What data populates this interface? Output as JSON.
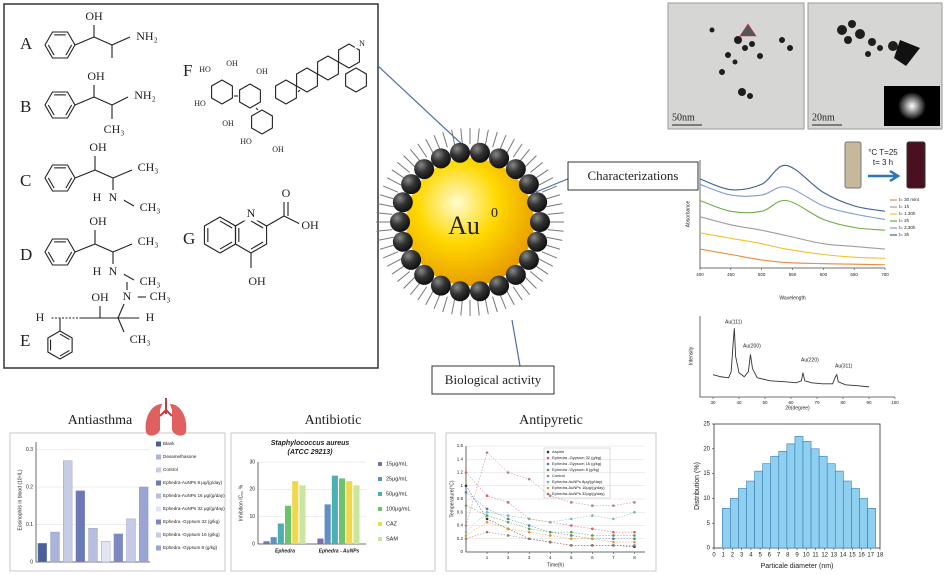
{
  "structures": [
    {
      "label": "A",
      "atoms": [
        "OH",
        "NH₂"
      ]
    },
    {
      "label": "B",
      "atoms": [
        "OH",
        "NH₂",
        "CH₃"
      ]
    },
    {
      "label": "C",
      "atoms": [
        "OH",
        "CH₃",
        "H",
        "N",
        "CH₃"
      ]
    },
    {
      "label": "D",
      "atoms": [
        "OH",
        "CH₃",
        "H",
        "N",
        "CH₃"
      ]
    },
    {
      "label": "E",
      "atoms": [
        "OH",
        "N",
        "CH₃",
        "H",
        "H",
        "CH₃"
      ]
    },
    {
      "label": "F",
      "atoms": [
        "HO",
        "OH",
        "HO",
        "OH",
        "OH",
        "HO",
        "OH",
        "N"
      ]
    },
    {
      "label": "G",
      "atoms": [
        "N",
        "O",
        "OH",
        "OH"
      ]
    }
  ],
  "center": {
    "element": "Au",
    "superscript": "0"
  },
  "callouts": {
    "characterizations": "Characterizations",
    "biological_activity": "Biological activity"
  },
  "tem": {
    "scale_bars": [
      "50nm",
      "20nm"
    ]
  },
  "uv_vis": {
    "inset": [
      "°C T=25",
      "t= 3 h"
    ],
    "x_label": "Wavelength",
    "y_label": "Absorbance",
    "x": [
      400,
      450,
      500,
      540,
      600,
      650,
      700
    ],
    "xlim": [
      400,
      700
    ],
    "xticks": [
      400,
      450,
      500,
      550,
      600,
      650,
      700
    ],
    "ylim": [
      0,
      2
    ],
    "series": [
      {
        "name": "t= 30 mint",
        "color": "#ed8a3a",
        "values": [
          0.35,
          0.25,
          0.15,
          0.1,
          0.08,
          0.07,
          0.06
        ]
      },
      {
        "name": "t= 1h",
        "color": "#9e9e9e",
        "values": [
          0.95,
          0.8,
          0.7,
          0.6,
          0.45,
          0.4,
          0.35
        ]
      },
      {
        "name": "t= 1.30h",
        "color": "#f2c12e",
        "values": [
          0.65,
          0.55,
          0.45,
          0.35,
          0.25,
          0.2,
          0.18
        ]
      },
      {
        "name": "t= 2h",
        "color": "#70ad47",
        "values": [
          1.25,
          1.05,
          1.05,
          1.25,
          0.9,
          0.75,
          0.7
        ]
      },
      {
        "name": "t= 2.30h",
        "color": "#7f9cc9",
        "values": [
          1.55,
          1.35,
          1.35,
          1.5,
          1.15,
          1.0,
          0.9
        ]
      },
      {
        "name": "t= 3h",
        "color": "#3f5f8f",
        "values": [
          1.65,
          1.45,
          1.55,
          1.9,
          1.4,
          1.15,
          1.05
        ]
      }
    ]
  },
  "xrd": {
    "x_label": "2θ(degree)",
    "y_label": "Intensity",
    "peak_labels": [
      "Au(111)",
      "Au(200)",
      "Au(220)",
      "Au(311)"
    ],
    "x": [
      30,
      33,
      36,
      37,
      37.8,
      38.2,
      38.7,
      40,
      42,
      43.6,
      44.4,
      45.2,
      47,
      52,
      58,
      62,
      64,
      64.6,
      65.3,
      68,
      72,
      76,
      77.1,
      77.6,
      78.2,
      81,
      86,
      90
    ],
    "values": [
      22,
      20,
      19,
      25,
      55,
      68,
      40,
      24,
      20,
      25,
      42,
      28,
      19,
      16,
      15,
      14,
      16,
      24,
      16,
      14,
      13,
      13,
      20,
      22,
      15,
      12,
      11,
      10
    ],
    "xlim": [
      25,
      100
    ],
    "xticks": [
      30,
      40,
      50,
      60,
      70,
      80,
      90,
      100
    ],
    "ylim": [
      0,
      80
    ],
    "color": "#333333"
  },
  "size_distribution": {
    "x_label": "Particale diameter (nm)",
    "y_label": "Distribution (%)",
    "bins": [
      0.9,
      1.775,
      2.65,
      3.525,
      4.4,
      5.275,
      6.15,
      7.025,
      7.9,
      8.775,
      9.65,
      10.525,
      11.4,
      12.275,
      13.15,
      14.025,
      14.9,
      15.775,
      16.65,
      17.525
    ],
    "values": [
      8,
      10,
      12,
      13.5,
      15.5,
      17,
      18.5,
      19.5,
      21,
      22.5,
      21.5,
      20,
      18.5,
      17,
      15.5,
      13.5,
      12,
      10,
      8
    ],
    "color": "#8fd0f0",
    "xlim": [
      0,
      18
    ],
    "xticks": [
      0,
      1,
      2,
      3,
      4,
      5,
      6,
      7,
      8,
      9,
      10,
      11,
      12,
      13,
      14,
      15,
      16,
      17,
      18
    ],
    "ylim": [
      0,
      25
    ],
    "yticks": [
      0,
      5,
      10,
      15,
      20,
      25
    ]
  },
  "antiasthma": {
    "title": "Antiasthma",
    "y_label": "Eosinophils in blood (10⁹/L)",
    "legend": [
      "Blank",
      "Dexamethasone",
      "Control",
      "Ephedra-AuNPs 8 μg/(g/day)",
      "Ephedra-AuNPs 16 μg/(g/day)",
      "Ephedra-AuNPs 32 μg/(g/day)",
      "Ephedra -Gypsum 32 (g/kg)",
      "Ephedra -Gypsum 16 (g/kg)",
      "Ephedra -Gypsum 8 (g/kg)"
    ],
    "values": [
      0.05,
      0.08,
      0.27,
      0.19,
      0.09,
      0.055,
      0.075,
      0.115,
      0.2
    ],
    "colors": [
      "#4a5f9a",
      "#aab4d8",
      "#c8cde6",
      "#6b79b6",
      "#b7bfdf",
      "#e1e4f2",
      "#7c89c0",
      "#c5cbe6",
      "#9aa5d3"
    ],
    "ylim": [
      0,
      0.32
    ],
    "yticks": [
      0,
      0.1,
      0.2,
      0.3
    ]
  },
  "antibiotic": {
    "title": "Antibiotic",
    "subtitle": [
      "Staphylococcus aureus",
      "(ATCC 29213)"
    ],
    "y_label": "Inhibition IC₅₀ %",
    "categories": [
      "Ephedra",
      "Ephedra - AuNPs"
    ],
    "series": [
      {
        "name": "15μg/mL",
        "color": "#7b6fb0",
        "values": [
          1,
          2
        ]
      },
      {
        "name": "25μg/mL",
        "color": "#5f8fc4",
        "values": [
          2.5,
          14.5
        ]
      },
      {
        "name": "50μg/mL",
        "color": "#4bb0b0",
        "values": [
          7.5,
          25
        ]
      },
      {
        "name": "100μg/mL",
        "color": "#6cc36c",
        "values": [
          14,
          24
        ]
      },
      {
        "name": "CAZ",
        "color": "#f0d848",
        "values": [
          23,
          23
        ]
      },
      {
        "name": "SAM",
        "color": "#c8e6a0",
        "values": [
          21.5,
          21.5
        ]
      }
    ],
    "ylim": [
      0,
      30
    ],
    "yticks": [
      0,
      10,
      20,
      30
    ]
  },
  "antipyretic": {
    "title": "Antipyretic",
    "x_label": "Time(h)",
    "y_label": "Temperature(°C)",
    "x": [
      0,
      1,
      2,
      3,
      4,
      5,
      6,
      7,
      8
    ],
    "xlim": [
      0,
      8.5
    ],
    "xticks": [
      1,
      2,
      3,
      4,
      5,
      6,
      7,
      8
    ],
    "ylim": [
      0,
      1.6
    ],
    "yticks": [
      0,
      0.2,
      0.4,
      0.6,
      0.8,
      1,
      1.2,
      1.4,
      1.6
    ],
    "series": [
      {
        "name": "Aspirin",
        "color": "#333333",
        "values": [
          1.0,
          0.5,
          0.35,
          0.2,
          0.15,
          0.1,
          0.1,
          0.1,
          0.08
        ]
      },
      {
        "name": "Ephedra -Gypsum 32 (g/kg)",
        "color": "#e15759",
        "values": [
          1.2,
          0.85,
          0.75,
          0.5,
          0.45,
          0.4,
          0.35,
          0.3,
          0.3
        ]
      },
      {
        "name": "Ephedra -Gypsum 16 (g/kg)",
        "color": "#4e79a7",
        "values": [
          0.9,
          0.65,
          0.5,
          0.4,
          0.3,
          0.25,
          0.2,
          0.2,
          0.2
        ]
      },
      {
        "name": "Ephedra -Gypsum 8 (g/kg)",
        "color": "#59a14f",
        "values": [
          0.7,
          0.55,
          0.45,
          0.35,
          0.3,
          0.3,
          0.25,
          0.25,
          0.25
        ]
      },
      {
        "name": "Control",
        "color": "#b07aa1",
        "values": [
          0.4,
          1.5,
          1.2,
          1.1,
          0.85,
          0.75,
          0.7,
          0.7,
          0.75
        ]
      },
      {
        "name": "Ephedra-AuNPs 8μg/(g/day)",
        "color": "#76b7b2",
        "values": [
          0.3,
          0.6,
          0.55,
          0.5,
          0.45,
          0.5,
          0.55,
          0.5,
          0.6
        ]
      },
      {
        "name": "Ephedra-AuNPs 16μg/(g/day)",
        "color": "#f28e2b",
        "values": [
          0.25,
          0.45,
          0.35,
          0.3,
          0.25,
          0.2,
          0.2,
          0.15,
          0.15
        ]
      },
      {
        "name": "Ephedra-AuNPs 32μg/(g/day)",
        "color": "#9c755f",
        "values": [
          0.2,
          0.3,
          0.25,
          0.2,
          0.15,
          0.1,
          0.1,
          0.1,
          0.1
        ]
      }
    ]
  }
}
